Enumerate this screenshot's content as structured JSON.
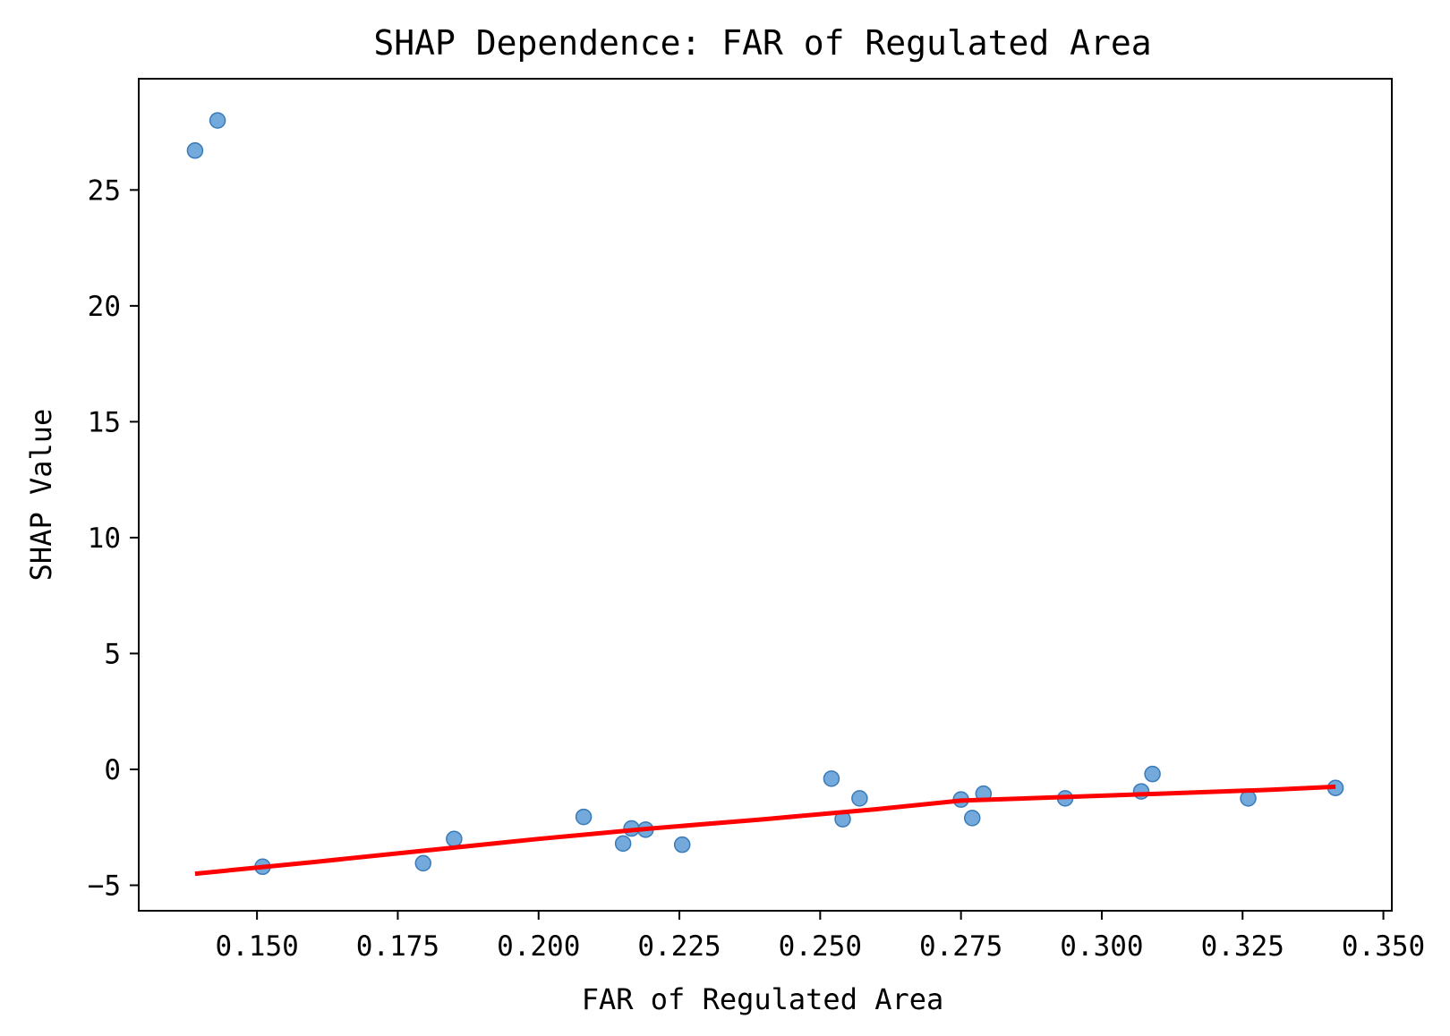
{
  "chart_data": {
    "type": "scatter",
    "title": "SHAP Dependence: FAR of Regulated Area",
    "xlabel": "FAR of Regulated Area",
    "ylabel": "SHAP Value",
    "xlim": [
      0.129,
      0.3515
    ],
    "ylim": [
      -6.1,
      29.8
    ],
    "xticks": [
      0.15,
      0.175,
      0.2,
      0.225,
      0.25,
      0.275,
      0.3,
      0.325,
      0.35
    ],
    "xtick_labels": [
      "0.150",
      "0.175",
      "0.200",
      "0.225",
      "0.250",
      "0.275",
      "0.300",
      "0.325",
      "0.350"
    ],
    "yticks": [
      -5,
      0,
      5,
      10,
      15,
      20,
      25
    ],
    "ytick_labels": [
      "−5",
      "0",
      "5",
      "10",
      "15",
      "20",
      "25"
    ],
    "grid": false,
    "series": [
      {
        "kind": "scatter",
        "color": "#5b9bd5",
        "edge_color": "#3a7ab8",
        "points": [
          [
            0.139,
            26.7
          ],
          [
            0.143,
            28.0
          ],
          [
            0.151,
            -4.2
          ],
          [
            0.1795,
            -4.05
          ],
          [
            0.185,
            -3.0
          ],
          [
            0.208,
            -2.05
          ],
          [
            0.215,
            -3.2
          ],
          [
            0.2165,
            -2.55
          ],
          [
            0.219,
            -2.6
          ],
          [
            0.2255,
            -3.25
          ],
          [
            0.252,
            -0.4
          ],
          [
            0.254,
            -2.15
          ],
          [
            0.257,
            -1.25
          ],
          [
            0.275,
            -1.3
          ],
          [
            0.277,
            -2.1
          ],
          [
            0.279,
            -1.05
          ],
          [
            0.2935,
            -1.25
          ],
          [
            0.307,
            -0.95
          ],
          [
            0.309,
            -0.2
          ],
          [
            0.326,
            -1.25
          ],
          [
            0.3415,
            -0.8
          ]
        ]
      },
      {
        "kind": "line",
        "color": "#ff0000",
        "points": [
          [
            0.139,
            -4.5
          ],
          [
            0.16,
            -4.0
          ],
          [
            0.18,
            -3.5
          ],
          [
            0.2,
            -3.0
          ],
          [
            0.22,
            -2.55
          ],
          [
            0.24,
            -2.15
          ],
          [
            0.26,
            -1.72
          ],
          [
            0.275,
            -1.35
          ],
          [
            0.29,
            -1.22
          ],
          [
            0.31,
            -1.05
          ],
          [
            0.33,
            -0.88
          ],
          [
            0.3415,
            -0.75
          ]
        ]
      }
    ]
  }
}
